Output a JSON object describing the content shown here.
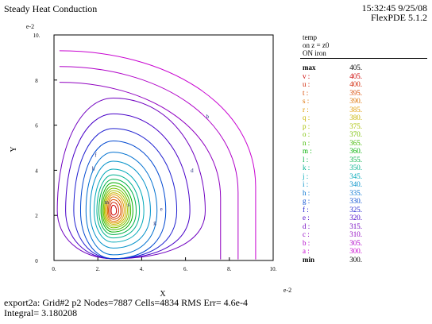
{
  "header": {
    "title": "Steady Heat Conduction",
    "timestamp": "15:32:45 9/25/08",
    "version": "FlexPDE 5.1.2"
  },
  "legend": {
    "variable": "temp",
    "slice": "on z = z0",
    "mode": "ON iron",
    "max_label": "max",
    "max_value": "405.",
    "min_label": "min",
    "min_value": "300.",
    "levels": [
      {
        "label": "v :",
        "value": "405.",
        "color": "#cc0000"
      },
      {
        "label": "u :",
        "value": "400.",
        "color": "#d02000"
      },
      {
        "label": "t :",
        "value": "395.",
        "color": "#d84800"
      },
      {
        "label": "s :",
        "value": "390.",
        "color": "#dc7000"
      },
      {
        "label": "r :",
        "value": "385.",
        "color": "#e09a00"
      },
      {
        "label": "q :",
        "value": "380.",
        "color": "#c8b400"
      },
      {
        "label": "p :",
        "value": "375.",
        "color": "#a8c000"
      },
      {
        "label": "o :",
        "value": "370.",
        "color": "#78c000"
      },
      {
        "label": "n :",
        "value": "365.",
        "color": "#40b800"
      },
      {
        "label": "m :",
        "value": "360.",
        "color": "#00b000"
      },
      {
        "label": "l :",
        "value": "355.",
        "color": "#00b048"
      },
      {
        "label": "k :",
        "value": "350.",
        "color": "#00b090"
      },
      {
        "label": "j :",
        "value": "345.",
        "color": "#00a8b8"
      },
      {
        "label": "i :",
        "value": "340.",
        "color": "#0090c8"
      },
      {
        "label": "h :",
        "value": "335.",
        "color": "#0070d0"
      },
      {
        "label": "g :",
        "value": "330.",
        "color": "#0048d0"
      },
      {
        "label": "f :",
        "value": "325.",
        "color": "#2020d0"
      },
      {
        "label": "e :",
        "value": "320.",
        "color": "#4800c8"
      },
      {
        "label": "d :",
        "value": "315.",
        "color": "#7000c0"
      },
      {
        "label": "c :",
        "value": "310.",
        "color": "#9000c0"
      },
      {
        "label": "b :",
        "value": "305.",
        "color": "#b000c8"
      },
      {
        "label": "a :",
        "value": "300.",
        "color": "#c800d0"
      }
    ]
  },
  "footer": {
    "line1": "export2a:  Grid#2  p2  Nodes=7887 Cells=4834 RMS Err= 4.6e-4",
    "line2": "Integral=   3.180208"
  },
  "chart_data": {
    "type": "contour",
    "variable": "temp",
    "xlabel": "X",
    "ylabel": "Y",
    "x_scale_label": "e-2",
    "y_scale_label": "e-2",
    "xlim": [
      0,
      10
    ],
    "ylim": [
      0,
      10
    ],
    "x_ticks": [
      "0.",
      "2.",
      "4.",
      "6.",
      "8.",
      "10."
    ],
    "y_ticks": [
      "0",
      "2",
      "4",
      "6",
      "8",
      "10."
    ],
    "heat_source_center": [
      2.7,
      2.2
    ],
    "range": [
      300,
      405
    ],
    "contour_levels": [
      300,
      305,
      310,
      315,
      320,
      325,
      330,
      335,
      340,
      345,
      350,
      355,
      360,
      365,
      370,
      375,
      380,
      385,
      390,
      395,
      400,
      405
    ],
    "contour_x_extent": [
      9.2,
      8.4,
      7.6,
      6.9,
      6.2,
      5.6,
      5.1,
      4.7,
      4.4,
      4.1,
      3.9,
      3.75,
      3.6,
      3.5,
      3.42,
      3.35,
      3.28,
      3.2,
      3.12,
      3.05,
      2.95,
      2.85
    ],
    "contour_y_top": [
      9.3,
      8.6,
      7.9,
      7.2,
      6.5,
      5.85,
      5.3,
      4.8,
      4.4,
      4.05,
      3.8,
      3.6,
      3.45,
      3.32,
      3.2,
      3.1,
      3.0,
      2.92,
      2.82,
      2.7,
      2.58,
      2.45
    ],
    "contour_labels": [
      {
        "text": "b",
        "x": 7.0,
        "y": 6.3
      },
      {
        "text": "d",
        "x": 6.3,
        "y": 3.9
      },
      {
        "text": "g",
        "x": 4.6,
        "y": 1.6
      },
      {
        "text": "f",
        "x": 1.9,
        "y": 4.6
      },
      {
        "text": "h",
        "x": 1.8,
        "y": 4.0
      },
      {
        "text": "m",
        "x": 2.4,
        "y": 2.5
      },
      {
        "text": "s",
        "x": 3.4,
        "y": 2.4
      },
      {
        "text": "e",
        "x": 4.9,
        "y": 2.2
      }
    ]
  }
}
